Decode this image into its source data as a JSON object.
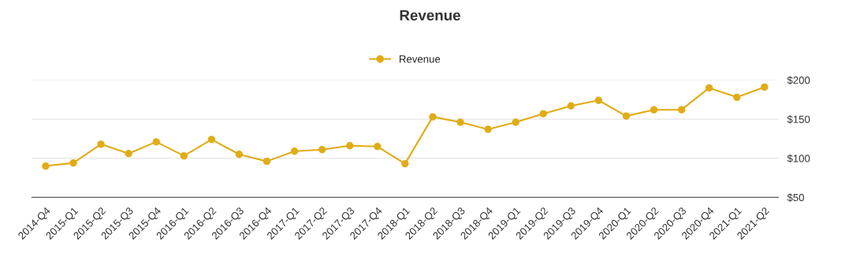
{
  "chart_data": {
    "type": "line",
    "title": "Revenue",
    "categories": [
      "2014-Q4",
      "2015-Q1",
      "2015-Q2",
      "2015-Q3",
      "2015-Q4",
      "2016-Q1",
      "2016-Q2",
      "2016-Q3",
      "2016-Q4",
      "2017-Q1",
      "2017-Q2",
      "2017-Q3",
      "2017-Q4",
      "2018-Q1",
      "2018-Q2",
      "2018-Q3",
      "2018-Q4",
      "2019-Q1",
      "2019-Q2",
      "2019-Q3",
      "2019-Q4",
      "2020-Q1",
      "2020-Q2",
      "2020-Q3",
      "2020-Q4",
      "2021-Q1",
      "2021-Q2"
    ],
    "series": [
      {
        "name": "Revenue",
        "color": "#e0ac16",
        "values": [
          90,
          94,
          118,
          106,
          121,
          103,
          124,
          105,
          96,
          109,
          111,
          116,
          115,
          93,
          153,
          146,
          137,
          146,
          157,
          167,
          174,
          154,
          162,
          162,
          190,
          178,
          191
        ]
      }
    ],
    "ylim": [
      50,
      200
    ],
    "yticks": [
      {
        "value": 50,
        "label": "$50"
      },
      {
        "value": 100,
        "label": "$100"
      },
      {
        "value": 150,
        "label": "$150"
      },
      {
        "value": 200,
        "label": "$200"
      }
    ],
    "grid": "y",
    "legend": "top",
    "marker": "circle",
    "line_style": "solid"
  }
}
